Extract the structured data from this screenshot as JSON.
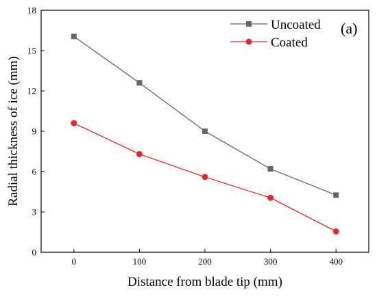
{
  "chart_data": {
    "type": "line",
    "xlabel": "Distance from blade tip (mm)",
    "ylabel": "Radial thickness of ice (mm)",
    "panel_label": "(a)",
    "xlim": [
      -50,
      450
    ],
    "ylim": [
      0,
      18
    ],
    "xticks": [
      0,
      100,
      200,
      300,
      400
    ],
    "yticks": [
      0,
      3,
      6,
      9,
      12,
      15,
      18
    ],
    "grid": false,
    "legend_position": "top-right",
    "x": [
      0,
      100,
      200,
      300,
      400
    ],
    "series": [
      {
        "name": "Uncoated",
        "values": [
          16.05,
          12.6,
          9.0,
          6.2,
          4.25
        ],
        "color": "#666666",
        "marker": "square"
      },
      {
        "name": "Coated",
        "values": [
          9.6,
          7.3,
          5.6,
          4.05,
          1.55
        ],
        "color": "#e8262a",
        "marker": "circle"
      }
    ]
  }
}
